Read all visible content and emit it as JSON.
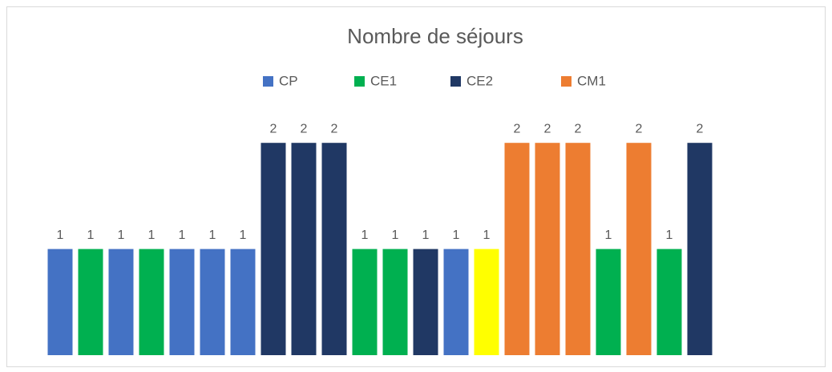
{
  "chart_data": {
    "type": "bar",
    "title": "Nombre de séjours",
    "legend": [
      {
        "name": "CP",
        "color": "#4472c4"
      },
      {
        "name": "CE1",
        "color": "#00b050"
      },
      {
        "name": "CE2",
        "color": "#203864"
      },
      {
        "name": "CM1",
        "color": "#ed7d31"
      }
    ],
    "categories": [
      null,
      null,
      null,
      null,
      null,
      null,
      null,
      null,
      null,
      null,
      null,
      null,
      null,
      null,
      null,
      null,
      null,
      null,
      null,
      null,
      null,
      null
    ],
    "values": [
      1,
      1,
      1,
      1,
      1,
      1,
      1,
      2,
      2,
      2,
      1,
      1,
      1,
      1,
      1,
      2,
      2,
      2,
      1,
      2,
      1,
      2
    ],
    "colors": [
      "#4472c4",
      "#00b050",
      "#4472c4",
      "#00b050",
      "#4472c4",
      "#4472c4",
      "#4472c4",
      "#203864",
      "#203864",
      "#203864",
      "#00b050",
      "#00b050",
      "#203864",
      "#4472c4",
      "#ffff00",
      "#ed7d31",
      "#ed7d31",
      "#ed7d31",
      "#00b050",
      "#ed7d31",
      "#00b050",
      "#203864"
    ],
    "ylim": [
      0,
      2.5
    ],
    "grid": false
  }
}
